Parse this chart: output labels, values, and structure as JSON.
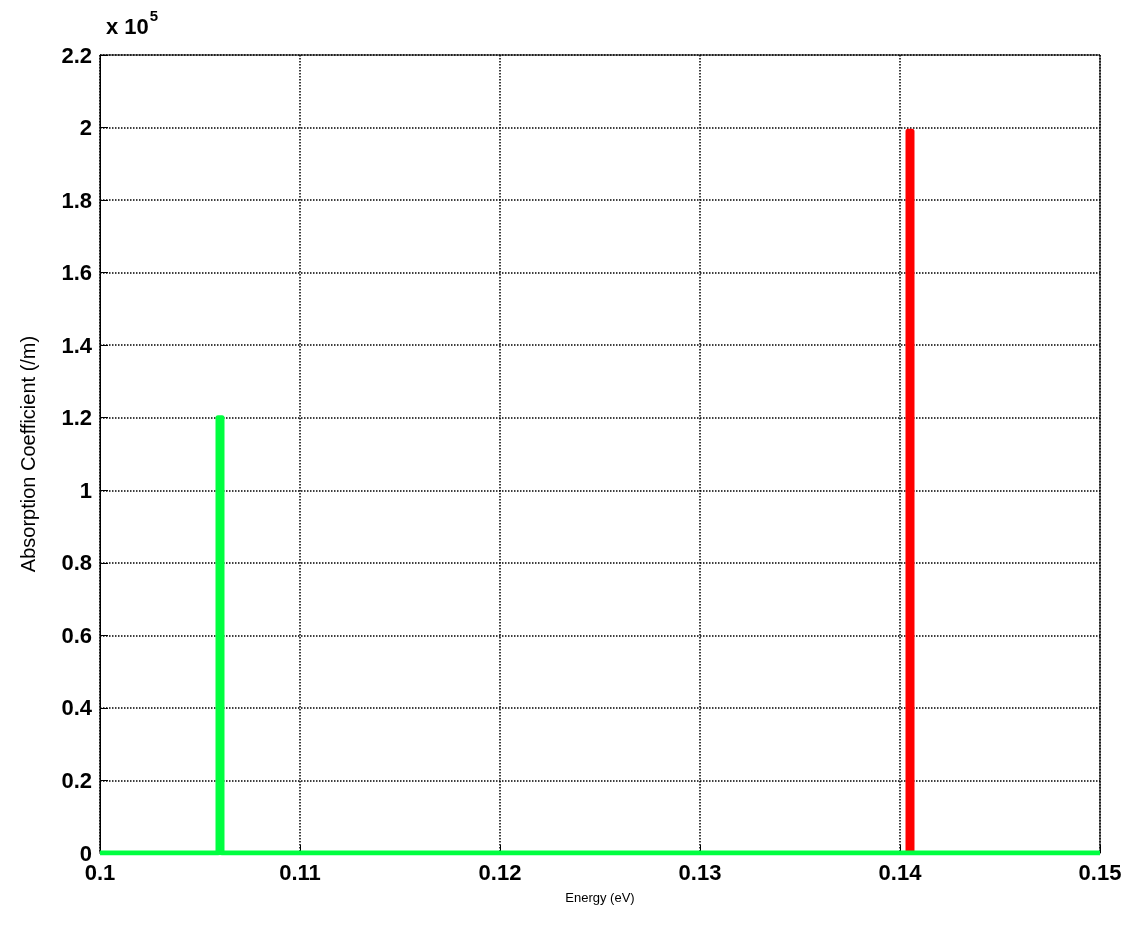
{
  "chart_data": {
    "type": "line",
    "xlabel": "Energy (eV)",
    "ylabel": "Absorption Coefficient (/m)",
    "annotations": [
      "x 10$^{5}$"
    ],
    "series": [
      {
        "color": "#ff0000",
        "x": [
          0.1404,
          0.1404,
          0.1406,
          0.1406
        ],
        "values": [
          0,
          1.99,
          1.99,
          0
        ]
      },
      {
        "color": "#00ff40",
        "x": [
          0.1,
          0.1059,
          0.1059,
          0.1061,
          0.1061,
          0.15
        ],
        "values": [
          0,
          0,
          1.2,
          1.2,
          0,
          0
        ]
      }
    ],
    "xlim": [
      0.1,
      0.15
    ],
    "xticks": [
      0.1,
      0.11,
      0.12,
      0.13,
      0.14,
      0.15
    ],
    "ylim": [
      0,
      2.2
    ],
    "yticks": [
      0,
      0.2,
      0.4,
      0.6,
      0.8,
      1,
      1.2,
      1.4,
      1.6,
      1.8,
      2,
      2.2
    ],
    "grid": true,
    "marker": "none",
    "line_style": "solid"
  }
}
